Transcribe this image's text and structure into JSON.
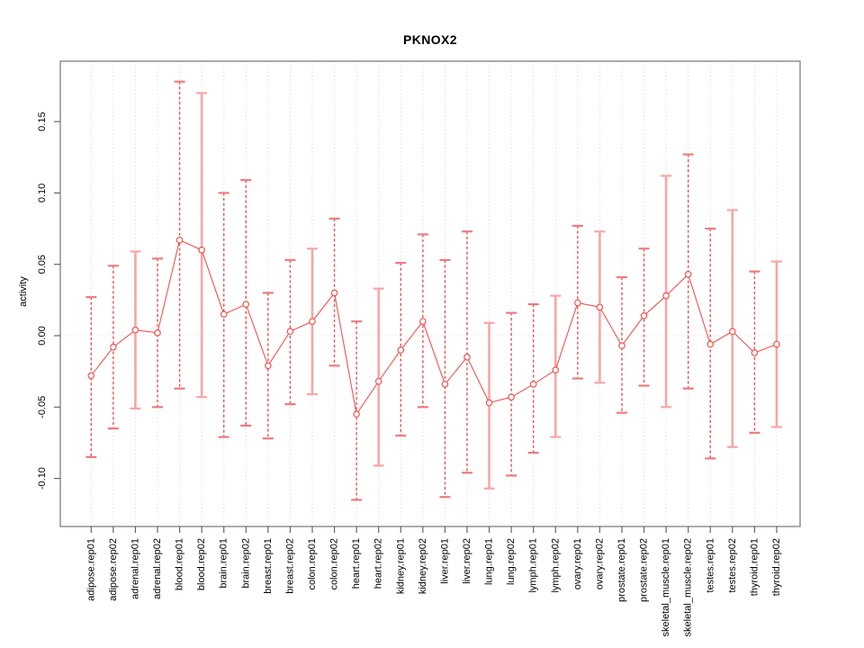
{
  "title": "PKNOX2",
  "y_axis": {
    "label": "activity",
    "tick_labels": [
      "0.15",
      "0.10",
      "0.05",
      "0.00",
      "-0.05",
      "-0.10"
    ],
    "tick_values": [
      0.15,
      0.1,
      0.05,
      0.0,
      -0.05,
      -0.1
    ]
  },
  "chart_data": {
    "type": "line",
    "subtype": "points-with-error-bars",
    "title": "PKNOX2",
    "xlabel": "",
    "ylabel": "activity",
    "ylim": [
      -0.134,
      0.192
    ],
    "grid": "dotted vertical line per category; dotted horizontal line at y=0",
    "legend": "none",
    "categories": [
      "adipose.rep01",
      "adipose.rep02",
      "adrenal.rep01",
      "adrenal.rep02",
      "blood.rep01",
      "blood.rep02",
      "brain.rep01",
      "brain.rep02",
      "breast.rep01",
      "breast.rep02",
      "colon.rep01",
      "colon.rep02",
      "heart.rep01",
      "heart.rep02",
      "kidney.rep01",
      "kidney.rep02",
      "liver.rep01",
      "liver.rep02",
      "lung.rep01",
      "lung.rep02",
      "lymph.rep01",
      "lymph.rep02",
      "ovary.rep01",
      "ovary.rep02",
      "prostate.rep01",
      "prostate.rep02",
      "skeletal_muscle.rep01",
      "skeletal_muscle.rep02",
      "testes.rep01",
      "testes.rep02",
      "thyroid.rep01",
      "thyroid.rep02"
    ],
    "series": [
      {
        "name": "activity",
        "values": [
          -0.028,
          -0.008,
          0.004,
          0.002,
          0.067,
          0.06,
          0.015,
          0.022,
          -0.021,
          0.003,
          0.01,
          0.03,
          -0.055,
          -0.032,
          -0.01,
          0.01,
          -0.034,
          -0.015,
          -0.047,
          -0.043,
          -0.034,
          -0.024,
          0.023,
          0.02,
          -0.007,
          0.014,
          0.028,
          0.043,
          -0.006,
          0.003,
          -0.012,
          -0.006
        ],
        "err_low": [
          -0.085,
          -0.065,
          -0.051,
          -0.05,
          -0.037,
          -0.043,
          -0.071,
          -0.063,
          -0.072,
          -0.048,
          -0.041,
          -0.021,
          -0.115,
          -0.091,
          -0.07,
          -0.05,
          -0.113,
          -0.096,
          -0.107,
          -0.098,
          -0.082,
          -0.071,
          -0.03,
          -0.033,
          -0.054,
          -0.035,
          -0.05,
          -0.037,
          -0.086,
          -0.078,
          -0.068,
          -0.064
        ],
        "err_high": [
          0.027,
          0.049,
          0.059,
          0.054,
          0.178,
          0.17,
          0.1,
          0.109,
          0.03,
          0.053,
          0.061,
          0.082,
          0.01,
          0.033,
          0.051,
          0.071,
          0.053,
          0.073,
          0.009,
          0.016,
          0.022,
          0.028,
          0.077,
          0.073,
          0.041,
          0.061,
          0.112,
          0.127,
          0.075,
          0.088,
          0.045,
          0.052
        ],
        "bar_styles": [
          "dashed",
          "dashed",
          "solid",
          "dashed",
          "dashed",
          "solid",
          "dashed",
          "dashed",
          "dashed",
          "dashed",
          "solid",
          "dashed",
          "dashed",
          "solid",
          "dashed",
          "dashed",
          "dashed",
          "dashed",
          "solid",
          "dashed",
          "dashed",
          "solid",
          "dashed",
          "solid",
          "dashed",
          "dashed",
          "solid",
          "dashed",
          "dashed",
          "solid",
          "dashed",
          "solid"
        ]
      }
    ],
    "colors": {
      "point": "#ef5350",
      "line": "#ef5350",
      "errorbar_dashed": "#e85252",
      "errorbar_solid": "#f7a6a6",
      "errorbar_cap_dashed": "#ef7b7b",
      "errorbar_cap_solid": "#f7a6a6",
      "grid": "#d9d9d9",
      "zero_line": "#dedede",
      "box": "#888888",
      "tick": "#666666",
      "text": "#000000"
    }
  }
}
